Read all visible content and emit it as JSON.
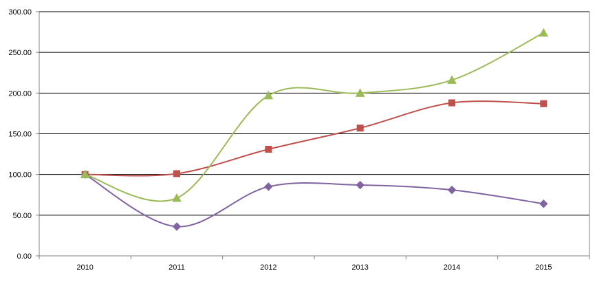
{
  "chart_data": {
    "type": "line",
    "title": "",
    "xlabel": "",
    "ylabel": "",
    "categories": [
      "2010",
      "2011",
      "2012",
      "2013",
      "2014",
      "2015"
    ],
    "ylim": [
      0,
      300
    ],
    "y_ticks": [
      "0.00",
      "50.00",
      "100.00",
      "150.00",
      "200.00",
      "250.00",
      "300.00"
    ],
    "grid": true,
    "smooth": true,
    "legend": "none",
    "series": [
      {
        "color": "#8064A2",
        "marker": "diamond",
        "values": [
          100,
          36,
          85,
          87,
          81,
          64
        ]
      },
      {
        "color": "#C0504D",
        "marker": "square",
        "values": [
          100,
          101,
          131,
          157,
          188,
          187
        ]
      },
      {
        "color": "#9BBB59",
        "marker": "triangle",
        "values": [
          100,
          71,
          197,
          200,
          216,
          274
        ]
      }
    ]
  }
}
